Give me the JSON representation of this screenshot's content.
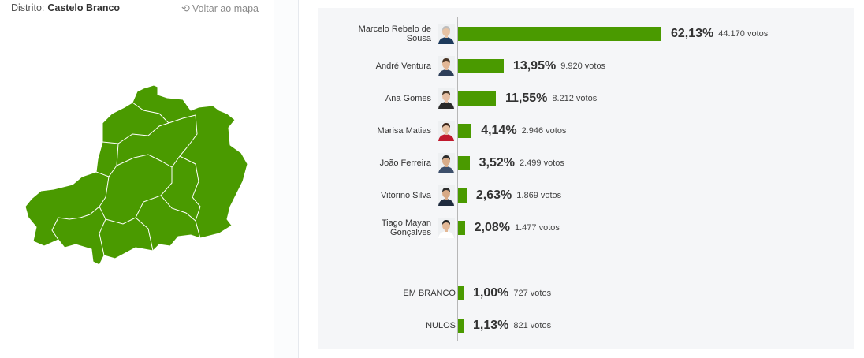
{
  "district": {
    "label": "Distrito:",
    "name": "Castelo Branco"
  },
  "back_link": {
    "icon": "undo-arrow-icon",
    "label": "Voltar ao mapa"
  },
  "colors": {
    "bar": "#4a9a00",
    "map_fill": "#4a9a00",
    "panel_bg": "#f5f6f8"
  },
  "results": [
    {
      "name_line1": "Marcelo Rebelo de",
      "name_line2": "Sousa",
      "percent": "62,13%",
      "votes": "44.170 votos",
      "share": 62.13,
      "avatar": "avatar-photo",
      "shirt": "#1d3a5c",
      "hair": "#bdbdbd",
      "skin": "#e7c3a4"
    },
    {
      "name_line1": "André Ventura",
      "name_line2": "",
      "percent": "13,95%",
      "votes": "9.920 votos",
      "share": 13.95,
      "avatar": "avatar-photo",
      "shirt": "#2e3f5a",
      "hair": "#4a3525",
      "skin": "#e2b796"
    },
    {
      "name_line1": "Ana Gomes",
      "name_line2": "",
      "percent": "11,55%",
      "votes": "8.212 votos",
      "share": 11.55,
      "avatar": "avatar-photo",
      "shirt": "#2a2a2a",
      "hair": "#4a3a2b",
      "skin": "#e6bfa3"
    },
    {
      "name_line1": "Marisa Matias",
      "name_line2": "",
      "percent": "4,14%",
      "votes": "2.946 votos",
      "share": 4.14,
      "avatar": "avatar-photo",
      "shirt": "#c0192d",
      "hair": "#3a2418",
      "skin": "#e6c0a1"
    },
    {
      "name_line1": "João Ferreira",
      "name_line2": "",
      "percent": "3,52%",
      "votes": "2.499 votos",
      "share": 3.52,
      "avatar": "avatar-photo",
      "shirt": "#3d4f6b",
      "hair": "#2b2b2b",
      "skin": "#d9ad8a"
    },
    {
      "name_line1": "Vitorino Silva",
      "name_line2": "",
      "percent": "2,63%",
      "votes": "1.869 votos",
      "share": 2.63,
      "avatar": "avatar-photo",
      "shirt": "#1f2b3e",
      "hair": "#2c2c2c",
      "skin": "#d7a985"
    },
    {
      "name_line1": "Tiago Mayan",
      "name_line2": "Gonçalves",
      "percent": "2,08%",
      "votes": "1.477 votos",
      "share": 2.08,
      "avatar": "avatar-photo",
      "shirt": "#ffffff",
      "hair": "#222222",
      "skin": "#e3b896"
    }
  ],
  "special_results": [
    {
      "name_line1": "EM BRANCO",
      "name_line2": "",
      "percent": "1,00%",
      "votes": "727 votos",
      "share": 1.0
    },
    {
      "name_line1": "NULOS",
      "name_line2": "",
      "percent": "1,13%",
      "votes": "821 votos",
      "share": 1.13
    }
  ]
}
